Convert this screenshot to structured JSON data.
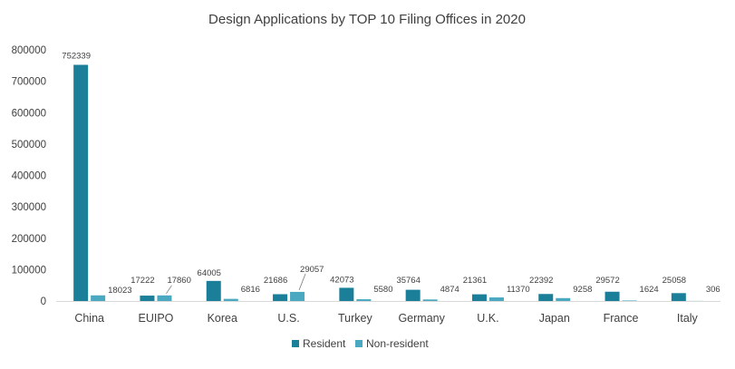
{
  "chart_data": {
    "type": "bar",
    "title": "Design Applications by TOP 10 Filing Offices in 2020",
    "xlabel": "",
    "ylabel": "",
    "categories": [
      "China",
      "EUIPO",
      "Korea",
      "U.S.",
      "Turkey",
      "Germany",
      "U.K.",
      "Japan",
      "France",
      "Italy"
    ],
    "series": [
      {
        "name": "Resident",
        "color": "#1b7f9a",
        "values": [
          752339,
          17222,
          64005,
          21686,
          42073,
          35764,
          21361,
          22392,
          29572,
          25058
        ]
      },
      {
        "name": "Non-resident",
        "color": "#4aa8c0",
        "values": [
          18023,
          17860,
          6816,
          29057,
          5580,
          4874,
          11370,
          9258,
          1624,
          306
        ]
      }
    ],
    "ylim": [
      0,
      800000
    ],
    "yticks": [
      0,
      100000,
      200000,
      300000,
      400000,
      500000,
      600000,
      700000,
      800000
    ],
    "ytick_labels": [
      "0",
      "100000",
      "200000",
      "300000",
      "400000",
      "500000",
      "600000",
      "700000",
      "800000"
    ],
    "data_labels": {
      "Resident": [
        "752339",
        "17222",
        "64005",
        "21686",
        "42073",
        "35764",
        "21361",
        "22392",
        "29572",
        "25058"
      ],
      "Non-resident": [
        "18023",
        "17860",
        "6816",
        "29057",
        "5580",
        "4874",
        "11370",
        "9258",
        "1624",
        "306"
      ]
    },
    "grid": false,
    "legend": "bottom-center"
  }
}
